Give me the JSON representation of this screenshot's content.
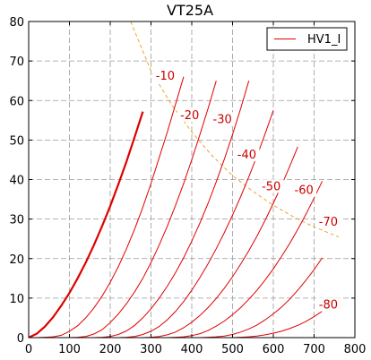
{
  "chart_data": {
    "type": "line",
    "title": "VT25A",
    "xlabel": "",
    "ylabel": "",
    "xlim": [
      0,
      800
    ],
    "ylim": [
      0,
      80
    ],
    "x_ticks": [
      0,
      100,
      200,
      300,
      400,
      500,
      600,
      700,
      800
    ],
    "y_ticks": [
      0,
      10,
      20,
      30,
      40,
      50,
      60,
      70,
      80
    ],
    "grid": true,
    "legend": {
      "placement": "top-right",
      "entries": [
        "HV1_I"
      ]
    },
    "colors": {
      "curves": "#e00000",
      "zero_curve": "#dd0000",
      "load_line": "#f0a030",
      "grid": "#999999"
    },
    "series": [
      {
        "name": "HV1_I",
        "grid_volts": 0,
        "x": [
          0,
          20,
          40,
          60,
          80,
          100,
          120,
          140,
          160,
          180,
          200,
          220,
          240,
          260,
          280
        ],
        "y": [
          0,
          1,
          2.8,
          5.2,
          8.1,
          11.3,
          15,
          19,
          23.4,
          28.2,
          33.3,
          38.8,
          44.6,
          50.8,
          57.2
        ]
      },
      {
        "grid_volts": -10,
        "x": [
          20,
          40,
          60,
          80,
          100,
          120,
          140,
          160,
          180,
          200,
          220,
          240,
          260,
          280,
          300,
          320,
          340,
          360,
          380
        ],
        "y": [
          0,
          0.1,
          0.2,
          0.6,
          1.6,
          3,
          5,
          7.5,
          10.5,
          14,
          18,
          22.5,
          27.5,
          33,
          39,
          45.5,
          52,
          59,
          66
        ]
      },
      {
        "grid_volts": -20,
        "x": [
          100,
          120,
          140,
          160,
          180,
          200,
          220,
          240,
          260,
          280,
          300,
          320,
          340,
          360,
          380,
          400,
          420,
          440,
          460
        ],
        "y": [
          0,
          0.1,
          0.3,
          0.9,
          2,
          3.8,
          6,
          8.6,
          11.6,
          15,
          19,
          23.4,
          28.2,
          33.4,
          39,
          45,
          51.4,
          58,
          65
        ]
      },
      {
        "grid_volts": -30,
        "x": [
          160,
          180,
          200,
          220,
          240,
          260,
          280,
          300,
          320,
          340,
          360,
          380,
          400,
          420,
          440,
          460,
          480,
          500,
          520,
          540
        ],
        "y": [
          0,
          0.1,
          0.3,
          0.8,
          1.7,
          3.1,
          5,
          7.3,
          10,
          13,
          16.4,
          20.2,
          24.4,
          29,
          34,
          39.4,
          45.2,
          51.4,
          58,
          65
        ]
      },
      {
        "grid_volts": -40,
        "x": [
          220,
          240,
          260,
          280,
          300,
          320,
          340,
          360,
          380,
          400,
          420,
          440,
          460,
          480,
          500,
          520,
          540,
          560,
          580,
          600
        ],
        "y": [
          0,
          0.1,
          0.3,
          0.8,
          1.6,
          2.8,
          4.5,
          6.6,
          9.1,
          12,
          15.2,
          18.7,
          22.5,
          26.6,
          31,
          35.7,
          40.7,
          46,
          51.6,
          57.5
        ]
      },
      {
        "grid_volts": -50,
        "x": [
          280,
          300,
          320,
          340,
          360,
          380,
          400,
          420,
          440,
          460,
          480,
          500,
          520,
          540,
          560,
          580,
          600,
          620,
          640,
          660
        ],
        "y": [
          0,
          0.1,
          0.3,
          0.7,
          1.4,
          2.5,
          3.9,
          5.6,
          7.6,
          9.9,
          12.5,
          15.4,
          18.6,
          22,
          25.7,
          29.7,
          34,
          38.5,
          43.3,
          48.3
        ]
      },
      {
        "grid_volts": -60,
        "x": [
          340,
          360,
          380,
          400,
          420,
          440,
          460,
          480,
          500,
          520,
          540,
          560,
          580,
          600,
          620,
          640,
          660,
          680,
          700,
          720
        ],
        "y": [
          0,
          0.1,
          0.2,
          0.5,
          1,
          1.8,
          2.9,
          4.2,
          5.8,
          7.6,
          9.7,
          12,
          14.6,
          17.4,
          20.5,
          23.8,
          27.4,
          31.2,
          35.3,
          39.6
        ]
      },
      {
        "grid_volts": -70,
        "x": [
          420,
          440,
          460,
          480,
          500,
          520,
          540,
          560,
          580,
          600,
          620,
          640,
          660,
          680,
          700,
          720
        ],
        "y": [
          0,
          0.1,
          0.2,
          0.4,
          0.8,
          1.4,
          2.2,
          3.2,
          4.5,
          6,
          7.7,
          9.7,
          12,
          14.5,
          17.2,
          20.2
        ]
      },
      {
        "grid_volts": -80,
        "x": [
          500,
          520,
          540,
          560,
          580,
          600,
          620,
          640,
          660,
          680,
          700,
          720
        ],
        "y": [
          0,
          0.1,
          0.2,
          0.4,
          0.7,
          1.1,
          1.6,
          2.3,
          3.1,
          4.1,
          5.3,
          6.7
        ]
      }
    ],
    "load_line": {
      "x": [
        250,
        300,
        350,
        400,
        450,
        500,
        550,
        600,
        650,
        700,
        760
      ],
      "y": [
        80,
        67.5,
        59,
        52,
        46,
        41,
        37,
        33.5,
        30.5,
        28,
        25.5
      ]
    },
    "annotations": [
      {
        "text": "-10",
        "x": 335,
        "y": 66
      },
      {
        "text": "-20",
        "x": 395,
        "y": 56
      },
      {
        "text": "-30",
        "x": 475,
        "y": 55
      },
      {
        "text": "-40",
        "x": 535,
        "y": 46
      },
      {
        "text": "-50",
        "x": 595,
        "y": 38
      },
      {
        "text": "-60",
        "x": 675,
        "y": 37
      },
      {
        "text": "-70",
        "x": 735,
        "y": 29
      },
      {
        "text": "-80",
        "x": 735,
        "y": 8
      }
    ]
  }
}
